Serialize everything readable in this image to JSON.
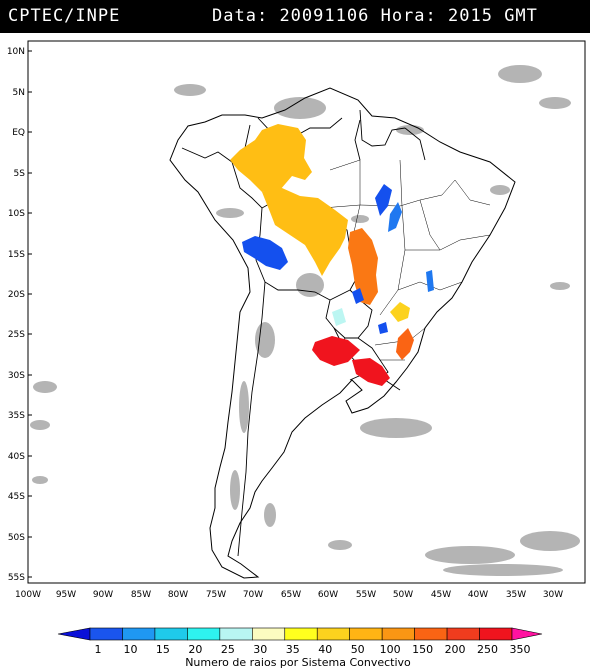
{
  "header": {
    "source": "CPTEC/INPE",
    "data_label": "Data:",
    "date": "20091106",
    "hora_label": "Hora:",
    "time": "2015 GMT"
  },
  "map": {
    "lat_labels": [
      "10N",
      "5N",
      "EQ",
      "5S",
      "10S",
      "15S",
      "20S",
      "25S",
      "30S",
      "35S",
      "40S",
      "45S",
      "50S",
      "55S"
    ],
    "lon_labels": [
      "100W",
      "95W",
      "90W",
      "85W",
      "80W",
      "75W",
      "70W",
      "65W",
      "60W",
      "55W",
      "50W",
      "45W",
      "40W",
      "35W",
      "30W"
    ]
  },
  "legend": {
    "ticks": [
      "1",
      "10",
      "15",
      "20",
      "25",
      "30",
      "35",
      "40",
      "50",
      "100",
      "150",
      "200",
      "250",
      "350"
    ],
    "colors": [
      "#0a10d8",
      "#1a55ee",
      "#1f98f2",
      "#1fcaea",
      "#2ef3ef",
      "#b8f6f2",
      "#fcfcc0",
      "#ffff1e",
      "#fcd21e",
      "#ffb414",
      "#fa9614",
      "#fa6414",
      "#f03c1e",
      "#f0141e",
      "#ff12a0"
    ],
    "title": "Numero de raios por Sistema Convectivo"
  },
  "clusters": [
    {
      "name": "cluster-amazon-north",
      "color": "#ffbe14"
    },
    {
      "name": "cluster-amazon-central",
      "color": "#ffbe14"
    },
    {
      "name": "cluster-mato-grosso",
      "color": "#fa7814"
    },
    {
      "name": "cluster-bolivia",
      "color": "#1450ee"
    },
    {
      "name": "cluster-argentina",
      "color": "#f0141e"
    },
    {
      "name": "cluster-uruguay",
      "color": "#f0141e"
    }
  ]
}
